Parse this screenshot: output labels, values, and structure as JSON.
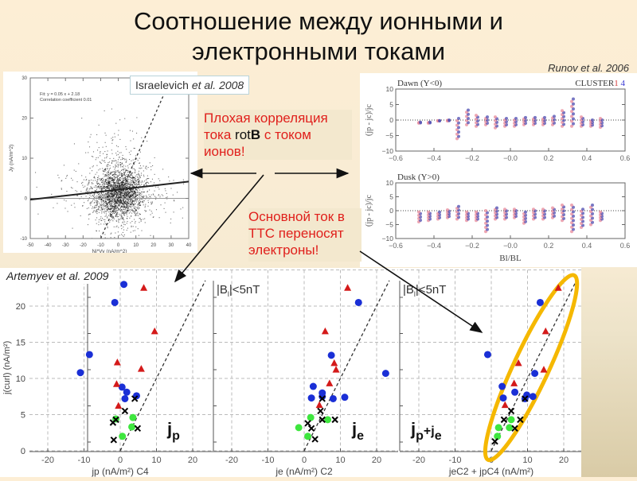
{
  "slide": {
    "title_line1": "Соотношение между ионными и",
    "title_line2": "электронными токами",
    "runov_citation": "Runov et al. 2006",
    "israelevich_label": "Israelevich",
    "israelevich_etal": "et al.",
    "israelevich_year": "2008",
    "artemyev_label": "Artemyev et al. 2009",
    "note1_line1": "Плохая корреляция",
    "note1_line2_a": "тока ",
    "note1_line2_rot": "rot",
    "note1_line2_B": "B",
    "note1_line2_b": " с током",
    "note1_line3": "ионов!",
    "note2_line1": "Основной ток в",
    "note2_line2": "ТТС переносят",
    "note2_line3": "электроны!",
    "colors": {
      "red_text": "#e0201c",
      "ellipse": "#F5B800",
      "blue": "#1a2fd6",
      "red": "#d41a1a",
      "green": "#3ee63e"
    }
  },
  "chart_data": [
    {
      "id": "israelevich",
      "type": "scatter",
      "title": "",
      "fit_text": "Fit: y = 0.05 x + 2.18",
      "corr_text": "Correlation coefficient 0.01",
      "xlabel": "Ni*Vy (nA/m^2)",
      "ylabel": "Jy (nA/m^2)",
      "xlim": [
        -50,
        40
      ],
      "ylim": [
        -10,
        30
      ],
      "xticks": [
        "-50",
        "-40",
        "-30",
        "-20",
        "-10",
        "0",
        "10",
        "20",
        "30",
        "40"
      ],
      "yticks": [
        "-10",
        "0",
        "10",
        "20",
        "30"
      ],
      "fit": {
        "slope": 0.05,
        "intercept": 2.18
      },
      "identity_line": true,
      "cloud_center": [
        0,
        1.5
      ]
    },
    {
      "id": "runov",
      "type": "scatter",
      "legend_text": "CLUSTER",
      "legend_1": "1",
      "legend_4": "4",
      "xlabel": "Bl/BL",
      "xlim": [
        -0.6,
        0.6
      ],
      "xticks": [
        "-0.6",
        "-0.4",
        "-0.2",
        "-0.0",
        "0.2",
        "0.4",
        "0.6"
      ],
      "panels": [
        {
          "title": "Dawn  (Y<0)",
          "ylabel": "(jp - jc)/jc",
          "ylim": [
            -10,
            10
          ],
          "yticks": [
            "10",
            "5",
            "0",
            "-5",
            "-10"
          ],
          "bins_x": [
            -0.475,
            -0.425,
            -0.375,
            -0.325,
            -0.275,
            -0.225,
            -0.175,
            -0.125,
            -0.075,
            -0.025,
            0.025,
            0.075,
            0.125,
            0.175,
            0.225,
            0.275,
            0.325,
            0.375,
            0.425,
            0.475
          ],
          "spread_min": [
            -1,
            -1,
            -0.3,
            -0.3,
            -6,
            -1.5,
            -2,
            -1.5,
            -2.5,
            -2,
            -2,
            -1.5,
            -1.5,
            -1.5,
            -1.5,
            -2,
            -2,
            -2,
            -2,
            -2.3
          ],
          "spread_max": [
            -0.7,
            -0.7,
            -0.2,
            0,
            0.5,
            3.2,
            1.5,
            1,
            1,
            0.5,
            0.5,
            0.8,
            0.8,
            0.8,
            1.2,
            3,
            6.8,
            1,
            0,
            0.5
          ]
        },
        {
          "title": "Dusk (Y>0)",
          "ylabel": "(jp - jc)/jc",
          "ylim": [
            -10,
            10
          ],
          "yticks": [
            "10",
            "5",
            "0",
            "-5",
            "-10"
          ],
          "bins_x": [
            -0.475,
            -0.425,
            -0.375,
            -0.325,
            -0.275,
            -0.225,
            -0.175,
            -0.125,
            -0.075,
            -0.025,
            0.025,
            0.075,
            0.125,
            0.175,
            0.225,
            0.275,
            0.325,
            0.375,
            0.425,
            0.475
          ],
          "spread_min": [
            -4,
            -3.5,
            -3,
            -2.5,
            -3,
            -3.5,
            -3.5,
            -7.5,
            -3,
            -3,
            -2.5,
            -4.5,
            -3,
            -3,
            -2.5,
            -3.5,
            -7.5,
            -6,
            -5,
            -3.5
          ],
          "spread_max": [
            -0.5,
            -0.5,
            -0.5,
            0.3,
            1.5,
            -0.5,
            -0.5,
            0,
            1,
            0.5,
            0.5,
            -0.5,
            0.5,
            0.5,
            1,
            2,
            2,
            0.5,
            2,
            -0.5
          ]
        }
      ]
    },
    {
      "id": "artemyev",
      "type": "scatter",
      "xlim": [
        -25,
        25
      ],
      "ylim": [
        0,
        23
      ],
      "xticks": [
        "-20",
        "-10",
        "0",
        "10",
        "20"
      ],
      "yticks": [
        "0",
        "5",
        "10",
        "15",
        "20"
      ],
      "ylabel": "j(curl) (nA/m²)",
      "panels": [
        {
          "name": "jp",
          "corner_label_main": "j",
          "corner_label_sub": "p",
          "subtitle": "",
          "xlabel": "jp (nA/m²) C4",
          "blue": [
            [
              -11,
              10.8
            ],
            [
              -8.5,
              13.3
            ],
            [
              -1.5,
              20.5
            ],
            [
              1,
              23
            ],
            [
              0.5,
              8.8
            ],
            [
              1.8,
              8.1
            ],
            [
              1.3,
              7.2
            ],
            [
              4.5,
              7.6
            ]
          ],
          "red": [
            [
              6.5,
              22.5
            ],
            [
              9.5,
              16.5
            ],
            [
              -0.8,
              12.2
            ],
            [
              5.8,
              11.3
            ],
            [
              -1,
              9.2
            ],
            [
              -0.5,
              6.2
            ]
          ],
          "green": [
            [
              -1.2,
              4.4
            ],
            [
              3.5,
              4.6
            ],
            [
              3.2,
              3.3
            ],
            [
              0.6,
              2
            ]
          ],
          "black": [
            [
              -2,
              3.9
            ],
            [
              -1.2,
              4.3
            ],
            [
              1.3,
              5.5
            ],
            [
              4,
              7.2
            ],
            [
              4.8,
              3.1
            ],
            [
              -1.8,
              1.5
            ]
          ]
        },
        {
          "name": "je",
          "corner_label_main": "j",
          "corner_label_sub": "e",
          "subtitle": "|B_l|<5nT",
          "xlabel": "je (nA/m²) C2",
          "blue": [
            [
              15,
              20.5
            ],
            [
              22.5,
              10.7
            ],
            [
              7.5,
              13.2
            ],
            [
              2.5,
              8.9
            ],
            [
              5,
              8
            ],
            [
              5,
              7.5
            ],
            [
              8,
              7.2
            ],
            [
              11.2,
              7.4
            ],
            [
              2,
              7.3
            ]
          ],
          "red": [
            [
              12,
              22.5
            ],
            [
              5.8,
              16.5
            ],
            [
              8.3,
              12.1
            ],
            [
              8.8,
              11.2
            ],
            [
              7,
              9.3
            ],
            [
              4.2,
              6.3
            ]
          ],
          "green": [
            [
              1.8,
              4.6
            ],
            [
              6.5,
              4.3
            ],
            [
              -1.5,
              3.2
            ],
            [
              1,
              2
            ]
          ],
          "black": [
            [
              5,
              7.2
            ],
            [
              4.5,
              5.5
            ],
            [
              5,
              4.3
            ],
            [
              8.5,
              4.3
            ],
            [
              1,
              3.8
            ],
            [
              2,
              3.1
            ],
            [
              3,
              1.6
            ]
          ]
        },
        {
          "name": "jp+je",
          "corner_label_main": "j",
          "corner_label_sub": "p",
          "corner_label_plus": "+j",
          "corner_label_sub2": "e",
          "subtitle": "|B_l|<5nT",
          "xlabel": "jeC2 + jpC4 (nA/m²)",
          "blue": [
            [
              13.5,
              20.5
            ],
            [
              -1,
              13.3
            ],
            [
              12,
              10.7
            ],
            [
              3,
              8.9
            ],
            [
              6.5,
              8.1
            ],
            [
              9.8,
              7.7
            ],
            [
              11.5,
              7.5
            ],
            [
              3.3,
              7.3
            ],
            [
              9.3,
              7.2
            ]
          ],
          "red": [
            [
              18.5,
              22.5
            ],
            [
              15,
              16.5
            ],
            [
              7.5,
              12.1
            ],
            [
              14.5,
              11.2
            ],
            [
              6.3,
              9.3
            ],
            [
              3.8,
              6.3
            ]
          ],
          "green": [
            [
              5.5,
              4.3
            ],
            [
              2,
              3.2
            ],
            [
              5,
              3.2
            ],
            [
              1.7,
              2
            ]
          ],
          "black": [
            [
              9.3,
              7.2
            ],
            [
              5.5,
              5.5
            ],
            [
              3.5,
              4.3
            ],
            [
              8,
              4.3
            ],
            [
              6.5,
              3.1
            ],
            [
              1,
              1.3
            ]
          ],
          "ellipse": true
        }
      ]
    }
  ]
}
